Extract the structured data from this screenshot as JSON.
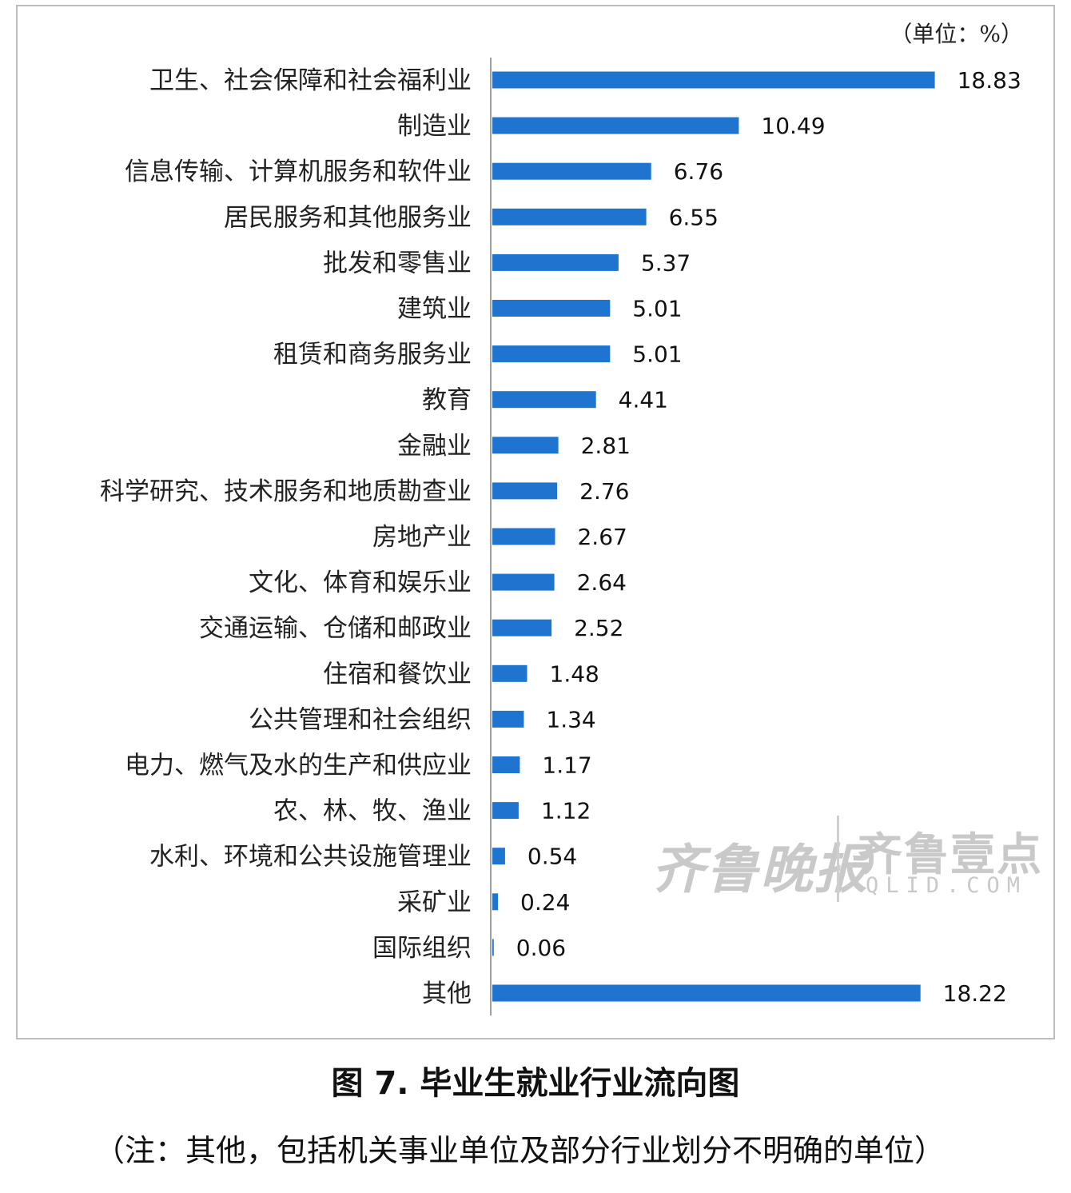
{
  "chart_data": {
    "type": "bar",
    "orientation": "horizontal",
    "unit_label": "（单位：%）",
    "categories": [
      "卫生、社会保障和社会福利业",
      "制造业",
      "信息传输、计算机服务和软件业",
      "居民服务和其他服务业",
      "批发和零售业",
      "建筑业",
      "租赁和商务服务业",
      "教育",
      "金融业",
      "科学研究、技术服务和地质勘查业",
      "房地产业",
      "文化、体育和娱乐业",
      "交通运输、仓储和邮政业",
      "住宿和餐饮业",
      "公共管理和社会组织",
      "电力、燃气及水的生产和供应业",
      "农、林、牧、渔业",
      "水利、环境和公共设施管理业",
      "采矿业",
      "国际组织",
      "其他"
    ],
    "values": [
      18.83,
      10.49,
      6.76,
      6.55,
      5.37,
      5.01,
      5.01,
      4.41,
      2.81,
      2.76,
      2.67,
      2.64,
      2.52,
      1.48,
      1.34,
      1.17,
      1.12,
      0.54,
      0.24,
      0.06,
      18.22
    ],
    "value_labels": [
      "18.83",
      "10.49",
      "6.76",
      "6.55",
      "5.37",
      "5.01",
      "5.01",
      "4.41",
      "2.81",
      "2.76",
      "2.67",
      "2.64",
      "2.52",
      "1.48",
      "1.34",
      "1.17",
      "1.12",
      "0.54",
      "0.24",
      "0.06",
      "18.22"
    ],
    "xlim": [
      0,
      20
    ],
    "grid": false,
    "legend": "none",
    "bar_color": "#1f74d0"
  },
  "caption": "图 7. 毕业生就业行业流向图",
  "note": "（注：其他，包括机关事业单位及部分行业划分不明确的单位）",
  "watermark": {
    "left_text": "齐鲁晚报",
    "right_text": "齐鲁壹点",
    "domain_text": "QLID.COM"
  }
}
